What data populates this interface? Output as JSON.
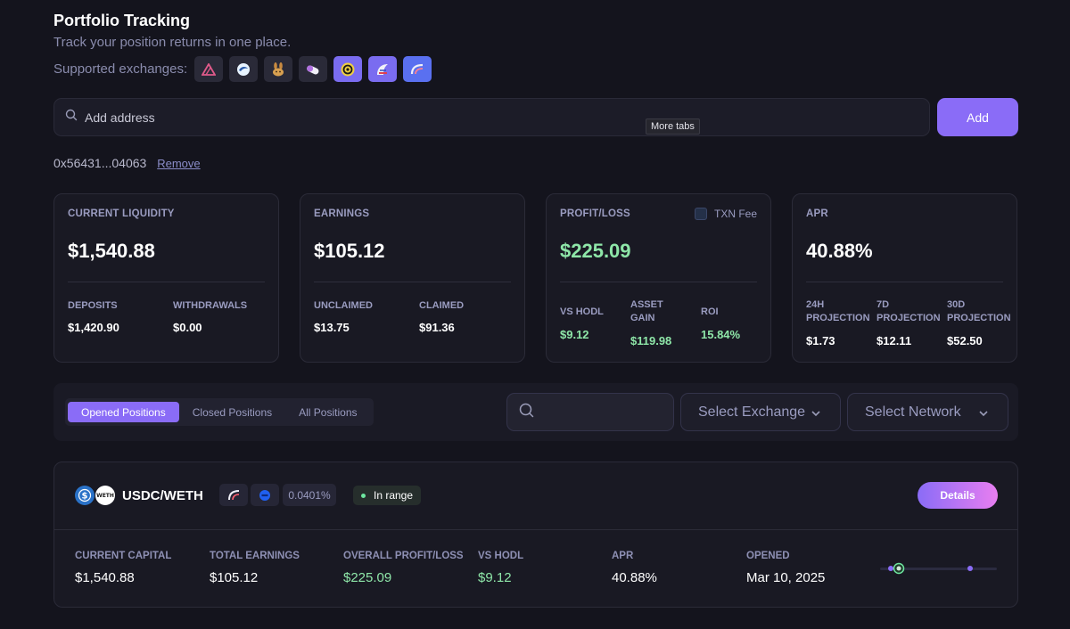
{
  "header": {
    "title": "Portfolio Tracking",
    "subtitle": "Track your position returns in one place.",
    "exchanges_label": "Supported exchanges:",
    "exchanges": [
      {
        "icon": "triangle-logo-icon",
        "bg": "#2a2a38",
        "color": "#e05a8a"
      },
      {
        "icon": "swirl-logo-icon",
        "bg": "#2a2a38",
        "color": "#9fd4ff"
      },
      {
        "icon": "bunny-logo-icon",
        "bg": "#2a2a38",
        "color": "#d8a050"
      },
      {
        "icon": "pill-logo-icon",
        "bg": "#2a2a38",
        "color": "#e0a0ff"
      },
      {
        "icon": "spiral-logo-icon",
        "bg": "#7a6cf0",
        "color": "#f0d040"
      },
      {
        "icon": "sail-logo-icon",
        "bg": "#7a6cf0",
        "color": "#ff8080"
      },
      {
        "icon": "curve-logo-icon",
        "bg": "#5a70f0",
        "color": "#ffb0c0"
      }
    ]
  },
  "search": {
    "placeholder": "Add address",
    "add_label": "Add",
    "tooltip": "More tabs"
  },
  "address": {
    "value": "0x56431...04063",
    "remove_label": "Remove"
  },
  "cards": {
    "liquidity": {
      "label": "CURRENT LIQUIDITY",
      "value": "$1,540.88",
      "deposits_label": "DEPOSITS",
      "deposits_value": "$1,420.90",
      "withdrawals_label": "WITHDRAWALS",
      "withdrawals_value": "$0.00"
    },
    "earnings": {
      "label": "EARNINGS",
      "value": "$105.12",
      "unclaimed_label": "UNCLAIMED",
      "unclaimed_value": "$13.75",
      "claimed_label": "CLAIMED",
      "claimed_value": "$91.36"
    },
    "profit": {
      "label": "PROFIT/LOSS",
      "txn_fee_label": "TXN Fee",
      "value": "$225.09",
      "vs_hodl_label": "VS HODL",
      "vs_hodl_value": "$9.12",
      "asset_gain_label_1": "ASSET",
      "asset_gain_label_2": "GAIN",
      "asset_gain_value": "$119.98",
      "roi_label": "ROI",
      "roi_value": "15.84%"
    },
    "apr": {
      "label": "APR",
      "value": "40.88%",
      "p24_label_1": "24H",
      "p24_label_2": "PROJECTION",
      "p24_value": "$1.73",
      "p7_label_1": "7D",
      "p7_label_2": "PROJECTION",
      "p7_value": "$12.11",
      "p30_label_1": "30D",
      "p30_label_2": "PROJECTION",
      "p30_value": "$52.50"
    }
  },
  "filters": {
    "tabs": [
      "Opened Positions",
      "Closed Positions",
      "All Positions"
    ],
    "active_tab": 0,
    "exchange_placeholder": "Select Exchange",
    "network_placeholder": "Select Network"
  },
  "position": {
    "pair": "USDC/WETH",
    "token_a": "usdc-token-icon",
    "token_b": "weth-token-icon",
    "token_b_text": "WETH",
    "fee": "0.0401%",
    "status": "In range",
    "details_label": "Details",
    "stats": {
      "capital_label": "CURRENT CAPITAL",
      "capital_value": "$1,540.88",
      "earnings_label": "TOTAL EARNINGS",
      "earnings_value": "$105.12",
      "pl_label": "OVERALL PROFIT/LOSS",
      "pl_value": "$225.09",
      "hodl_label": "VS HODL",
      "hodl_value": "$9.12",
      "apr_label": "APR",
      "apr_value": "40.88%",
      "opened_label": "OPENED",
      "opened_value": "Mar 10, 2025"
    }
  },
  "colors": {
    "accent": "#8a6cf7",
    "positive": "#8ee6a8",
    "background": "#14141d"
  }
}
